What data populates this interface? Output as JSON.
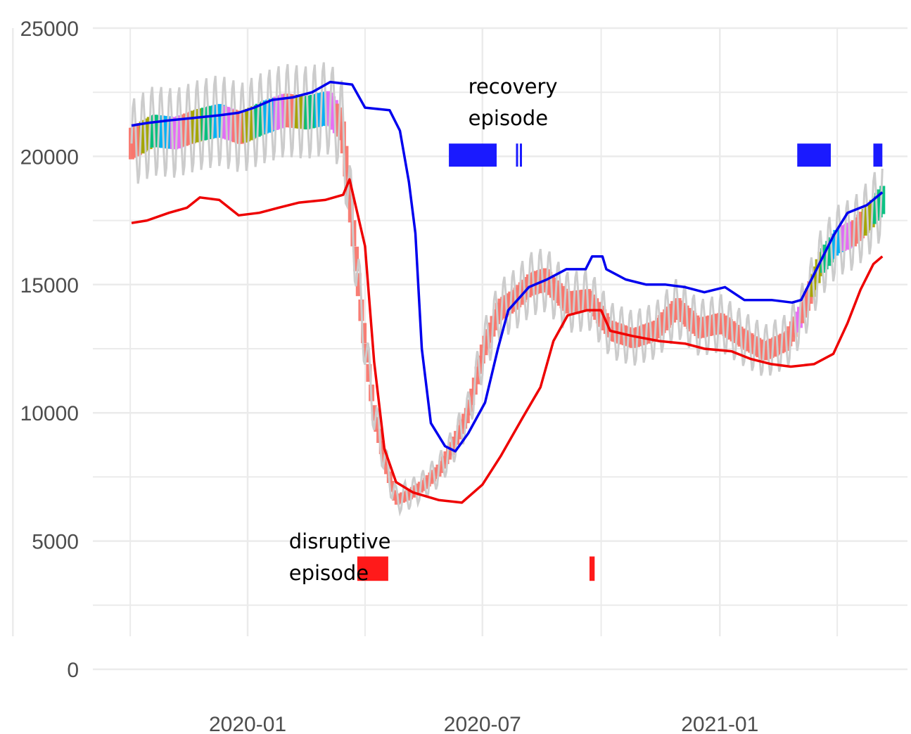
{
  "chart_data": {
    "type": "line",
    "title": "",
    "xlabel": "",
    "ylabel": "",
    "ylim": [
      0,
      25000
    ],
    "xlim": [
      "2019-10-03",
      "2021-05-09"
    ],
    "y_ticks": [
      {
        "value": 0,
        "label": "0"
      },
      {
        "value": 5000,
        "label": "5000"
      },
      {
        "value": 10000,
        "label": "10000"
      },
      {
        "value": 15000,
        "label": "15000"
      },
      {
        "value": 20000,
        "label": "20000"
      },
      {
        "value": 25000,
        "label": "25000"
      }
    ],
    "x_ticks": [
      {
        "value": "2020-01-01",
        "label": "2020-01"
      },
      {
        "value": "2020-07-01",
        "label": "2020-07"
      },
      {
        "value": "2021-01-01",
        "label": "2021-01"
      }
    ],
    "grid": true,
    "colors": {
      "daily": "#cccccc",
      "upper": "#0000ee",
      "lower": "#ee0000",
      "disruptive": "#ff1a1a",
      "recovery": "#1a1aff",
      "band_segments": [
        "#f8766d",
        "#a3a500",
        "#00bf7d",
        "#00b0f6",
        "#e76bf3"
      ]
    },
    "series": [
      {
        "key": "daily",
        "points": [
          [
            "2019-10-03",
            20500
          ],
          [
            "2019-10-20",
            21000
          ],
          [
            "2019-11-06",
            20900
          ],
          [
            "2019-11-23",
            21200
          ],
          [
            "2019-12-10",
            21400
          ],
          [
            "2019-12-27",
            21100
          ],
          [
            "2020-01-13",
            21500
          ],
          [
            "2020-01-30",
            21800
          ],
          [
            "2020-02-16",
            21700
          ],
          [
            "2020-03-04",
            21900
          ],
          [
            "2020-03-14",
            21200
          ],
          [
            "2020-03-22",
            17500
          ],
          [
            "2020-03-30",
            13500
          ],
          [
            "2020-04-08",
            10000
          ],
          [
            "2020-04-16",
            8200
          ],
          [
            "2020-04-25",
            6600
          ],
          [
            "2020-05-05",
            6800
          ],
          [
            "2020-05-17",
            7200
          ],
          [
            "2020-05-29",
            7800
          ],
          [
            "2020-06-08",
            8700
          ],
          [
            "2020-06-20",
            10000
          ],
          [
            "2020-07-02",
            12500
          ],
          [
            "2020-07-14",
            14000
          ],
          [
            "2020-07-26",
            14400
          ],
          [
            "2020-08-07",
            15000
          ],
          [
            "2020-08-19",
            15200
          ],
          [
            "2020-09-05",
            14300
          ],
          [
            "2020-09-22",
            14400
          ],
          [
            "2020-10-09",
            13200
          ],
          [
            "2020-10-26",
            12900
          ],
          [
            "2020-11-12",
            13200
          ],
          [
            "2020-11-29",
            14100
          ],
          [
            "2020-12-16",
            13300
          ],
          [
            "2021-01-02",
            13500
          ],
          [
            "2021-01-19",
            12900
          ],
          [
            "2021-02-05",
            12400
          ],
          [
            "2021-02-22",
            12800
          ],
          [
            "2021-03-07",
            14000
          ],
          [
            "2021-03-20",
            15800
          ],
          [
            "2021-04-02",
            16700
          ],
          [
            "2021-04-15",
            17000
          ],
          [
            "2021-04-28",
            17700
          ],
          [
            "2021-05-07",
            18300
          ]
        ]
      },
      {
        "key": "upper",
        "points": [
          [
            "2019-10-03",
            21200
          ],
          [
            "2019-10-15",
            21300
          ],
          [
            "2019-11-01",
            21400
          ],
          [
            "2019-11-20",
            21500
          ],
          [
            "2019-12-10",
            21600
          ],
          [
            "2019-12-25",
            21700
          ],
          [
            "2020-01-06",
            21900
          ],
          [
            "2020-01-20",
            22200
          ],
          [
            "2020-02-05",
            22300
          ],
          [
            "2020-02-20",
            22500
          ],
          [
            "2020-03-05",
            22900
          ],
          [
            "2020-03-22",
            22800
          ],
          [
            "2020-04-01",
            21900
          ],
          [
            "2020-04-20",
            21800
          ],
          [
            "2020-04-28",
            21000
          ],
          [
            "2020-05-05",
            19000
          ],
          [
            "2020-05-10",
            17000
          ],
          [
            "2020-05-15",
            12500
          ],
          [
            "2020-05-22",
            9600
          ],
          [
            "2020-06-02",
            8700
          ],
          [
            "2020-06-10",
            8500
          ],
          [
            "2020-06-20",
            9200
          ],
          [
            "2020-07-03",
            10400
          ],
          [
            "2020-07-13",
            12500
          ],
          [
            "2020-07-21",
            14000
          ],
          [
            "2020-08-06",
            14900
          ],
          [
            "2020-08-20",
            15200
          ],
          [
            "2020-09-04",
            15600
          ],
          [
            "2020-09-19",
            15600
          ],
          [
            "2020-09-24",
            16100
          ],
          [
            "2020-10-02",
            16100
          ],
          [
            "2020-10-05",
            15600
          ],
          [
            "2020-10-20",
            15200
          ],
          [
            "2020-11-05",
            15000
          ],
          [
            "2020-11-20",
            15000
          ],
          [
            "2020-12-05",
            14900
          ],
          [
            "2020-12-20",
            14700
          ],
          [
            "2021-01-05",
            14900
          ],
          [
            "2021-01-20",
            14400
          ],
          [
            "2021-02-10",
            14400
          ],
          [
            "2021-02-26",
            14300
          ],
          [
            "2021-03-05",
            14400
          ],
          [
            "2021-03-15",
            15400
          ],
          [
            "2021-03-30",
            16900
          ],
          [
            "2021-04-10",
            17800
          ],
          [
            "2021-04-25",
            18100
          ],
          [
            "2021-05-07",
            18600
          ]
        ]
      },
      {
        "key": "lower",
        "points": [
          [
            "2019-10-03",
            17400
          ],
          [
            "2019-10-15",
            17500
          ],
          [
            "2019-11-01",
            17800
          ],
          [
            "2019-11-15",
            18000
          ],
          [
            "2019-11-25",
            18400
          ],
          [
            "2019-12-10",
            18300
          ],
          [
            "2019-12-25",
            17700
          ],
          [
            "2020-01-10",
            17800
          ],
          [
            "2020-01-25",
            18000
          ],
          [
            "2020-02-10",
            18200
          ],
          [
            "2020-03-01",
            18300
          ],
          [
            "2020-03-15",
            18500
          ],
          [
            "2020-03-20",
            19100
          ],
          [
            "2020-04-01",
            16500
          ],
          [
            "2020-04-08",
            12000
          ],
          [
            "2020-04-16",
            8600
          ],
          [
            "2020-04-25",
            7300
          ],
          [
            "2020-05-08",
            6900
          ],
          [
            "2020-05-28",
            6600
          ],
          [
            "2020-06-15",
            6500
          ],
          [
            "2020-07-01",
            7200
          ],
          [
            "2020-07-15",
            8300
          ],
          [
            "2020-08-01",
            9800
          ],
          [
            "2020-08-15",
            11000
          ],
          [
            "2020-08-25",
            12800
          ],
          [
            "2020-09-05",
            13800
          ],
          [
            "2020-09-20",
            14000
          ],
          [
            "2020-10-01",
            14000
          ],
          [
            "2020-10-08",
            13200
          ],
          [
            "2020-10-25",
            13000
          ],
          [
            "2020-11-15",
            12800
          ],
          [
            "2020-12-05",
            12700
          ],
          [
            "2020-12-20",
            12500
          ],
          [
            "2021-01-10",
            12400
          ],
          [
            "2021-01-25",
            12100
          ],
          [
            "2021-02-10",
            11900
          ],
          [
            "2021-02-25",
            11800
          ],
          [
            "2021-03-15",
            11900
          ],
          [
            "2021-03-30",
            12300
          ],
          [
            "2021-04-10",
            13500
          ],
          [
            "2021-04-20",
            14800
          ],
          [
            "2021-04-30",
            15800
          ],
          [
            "2021-05-07",
            16100
          ]
        ]
      }
    ],
    "episodes": [
      {
        "key": "disruptive",
        "start": "2020-03-26",
        "end": "2020-04-19",
        "y_low": 3450,
        "y_high": 4400
      },
      {
        "key": "disruptive",
        "start": "2020-09-22",
        "end": "2020-09-26",
        "y_low": 3450,
        "y_high": 4400
      },
      {
        "key": "recovery",
        "start": "2020-06-05",
        "end": "2020-07-12",
        "y_low": 19600,
        "y_high": 20500
      },
      {
        "key": "recovery",
        "start": "2020-07-27",
        "end": "2020-07-28",
        "y_low": 19600,
        "y_high": 20500
      },
      {
        "key": "recovery",
        "start": "2020-07-30",
        "end": "2020-07-31",
        "y_low": 19600,
        "y_high": 20500
      },
      {
        "key": "recovery",
        "start": "2021-03-02",
        "end": "2021-03-28",
        "y_low": 19600,
        "y_high": 20500
      },
      {
        "key": "recovery",
        "start": "2021-04-30",
        "end": "2021-05-07",
        "y_low": 19600,
        "y_high": 20500
      }
    ],
    "annotations": [
      {
        "key": "recovery",
        "lines": [
          "recovery",
          "episode"
        ],
        "at": [
          "2020-06-20",
          22450
        ]
      },
      {
        "key": "disruptive",
        "lines": [
          "disruptive",
          "episode"
        ],
        "at": [
          "2020-02-02",
          4720
        ]
      }
    ]
  }
}
